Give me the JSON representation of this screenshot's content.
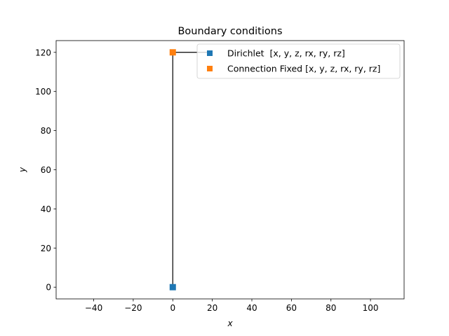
{
  "chart_data": {
    "type": "scatter",
    "title": "Boundary conditions",
    "xlabel": "x",
    "ylabel": "y",
    "xlim": [
      -59,
      117
    ],
    "ylim": [
      -6,
      126
    ],
    "xticks": [
      -40,
      -20,
      0,
      20,
      40,
      60,
      80,
      100
    ],
    "yticks": [
      0,
      20,
      40,
      60,
      80,
      100,
      120
    ],
    "xtick_labels": [
      "−40",
      "−20",
      "0",
      "20",
      "40",
      "60",
      "80",
      "100"
    ],
    "ytick_labels": [
      "0",
      "20",
      "40",
      "60",
      "80",
      "100",
      "120"
    ],
    "grid": false,
    "legend_position": "upper-right",
    "structure": {
      "x": [
        0,
        0,
        20
      ],
      "y": [
        0,
        120,
        120
      ],
      "color": "#000000"
    },
    "series": [
      {
        "name": "Dirichlet  [x, y, z, rx, ry, rz]",
        "marker": "square",
        "color": "#1f77b4",
        "x": [
          0
        ],
        "y": [
          0
        ]
      },
      {
        "name": "Connection Fixed [x, y, z, rx, ry, rz]",
        "marker": "square",
        "color": "#ff7f0e",
        "x": [
          0
        ],
        "y": [
          120
        ]
      }
    ]
  }
}
